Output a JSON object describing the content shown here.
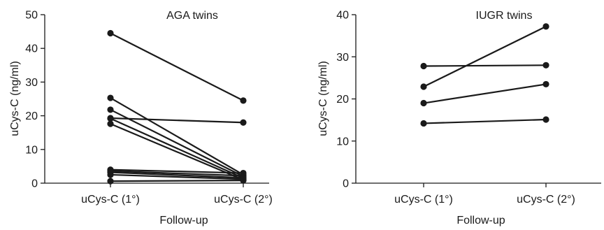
{
  "chart_data": [
    {
      "type": "line",
      "title": "AGA twins",
      "xlabel": "Follow-up",
      "ylabel": "uCys-C (ng/ml)",
      "categories": [
        "uCys-C (1°)",
        "uCys-C (2°)"
      ],
      "ylim": [
        0,
        50
      ],
      "yticks": [
        0,
        10,
        20,
        30,
        40,
        50
      ],
      "series": [
        {
          "values": [
            44.5,
            24.5
          ]
        },
        {
          "values": [
            25.3,
            2.5
          ]
        },
        {
          "values": [
            21.8,
            2.0
          ]
        },
        {
          "values": [
            19.3,
            18.0
          ]
        },
        {
          "values": [
            19.2,
            1.5
          ]
        },
        {
          "values": [
            17.6,
            1.0
          ]
        },
        {
          "values": [
            4.0,
            3.0
          ]
        },
        {
          "values": [
            3.6,
            2.2
          ]
        },
        {
          "values": [
            3.2,
            1.6
          ]
        },
        {
          "values": [
            2.5,
            1.2
          ]
        },
        {
          "values": [
            0.6,
            0.8
          ]
        }
      ]
    },
    {
      "type": "line",
      "title": "IUGR twins",
      "xlabel": "Follow-up",
      "ylabel": "uCys-C (ng/ml)",
      "categories": [
        "uCys-C (1°)",
        "uCys-C (2°)"
      ],
      "ylim": [
        0,
        40
      ],
      "yticks": [
        0,
        10,
        20,
        30,
        40
      ],
      "series": [
        {
          "values": [
            27.8,
            28.0
          ]
        },
        {
          "values": [
            22.9,
            37.2
          ]
        },
        {
          "values": [
            19.0,
            23.5
          ]
        },
        {
          "values": [
            14.2,
            15.1
          ]
        }
      ]
    }
  ]
}
